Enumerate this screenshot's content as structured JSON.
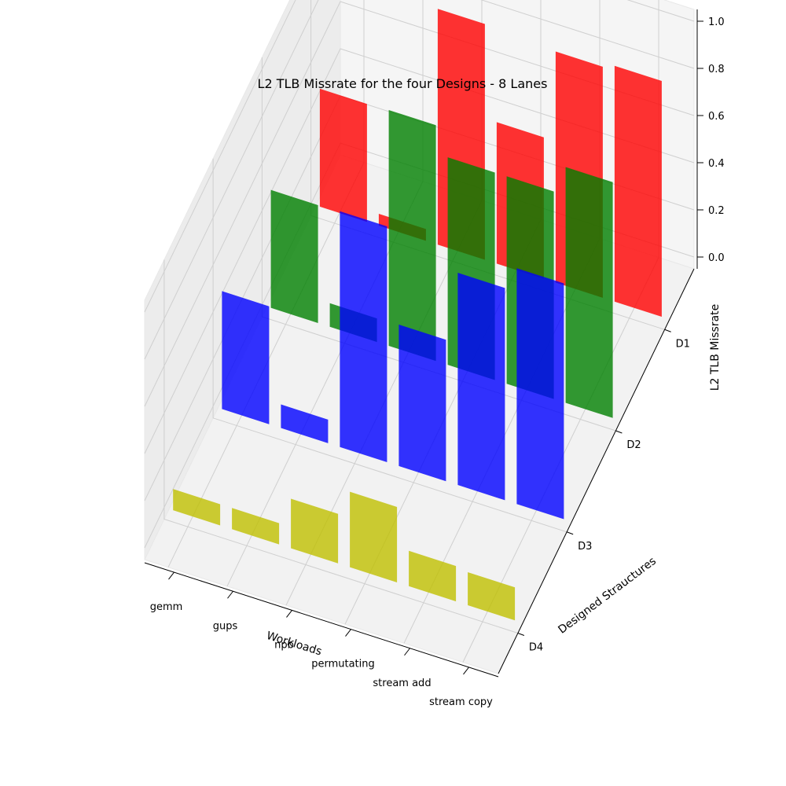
{
  "chart_data": {
    "type": "bar",
    "title": "L2 TLB Missrate for the four Designs - 8 Lanes",
    "xlabel": "Workloads",
    "ylabel": "Designed Strauctures",
    "zlabel": "L2 TLB Missrate",
    "categories": [
      "gemm",
      "gups",
      "npb",
      "permutating",
      "stream add",
      "stream copy"
    ],
    "designs": [
      "D1",
      "D2",
      "D3",
      "D4"
    ],
    "zlim": [
      0,
      1
    ],
    "zticks": [
      "0.0",
      "0.2",
      "0.4",
      "0.6",
      "0.8",
      "1.0"
    ],
    "grid": true,
    "series": [
      {
        "name": "D1",
        "color": "#ff0000",
        "values": [
          0.5,
          0.05,
          1.0,
          0.6,
          0.98,
          1.0
        ]
      },
      {
        "name": "D2",
        "color": "#008000",
        "values": [
          0.5,
          0.1,
          1.0,
          0.88,
          0.88,
          1.0
        ]
      },
      {
        "name": "D3",
        "color": "#0000ff",
        "values": [
          0.5,
          0.1,
          1.0,
          0.6,
          0.9,
          1.0
        ]
      },
      {
        "name": "D4",
        "color": "#bfbf00",
        "values": [
          0.09,
          0.09,
          0.21,
          0.32,
          0.15,
          0.14
        ]
      }
    ]
  }
}
